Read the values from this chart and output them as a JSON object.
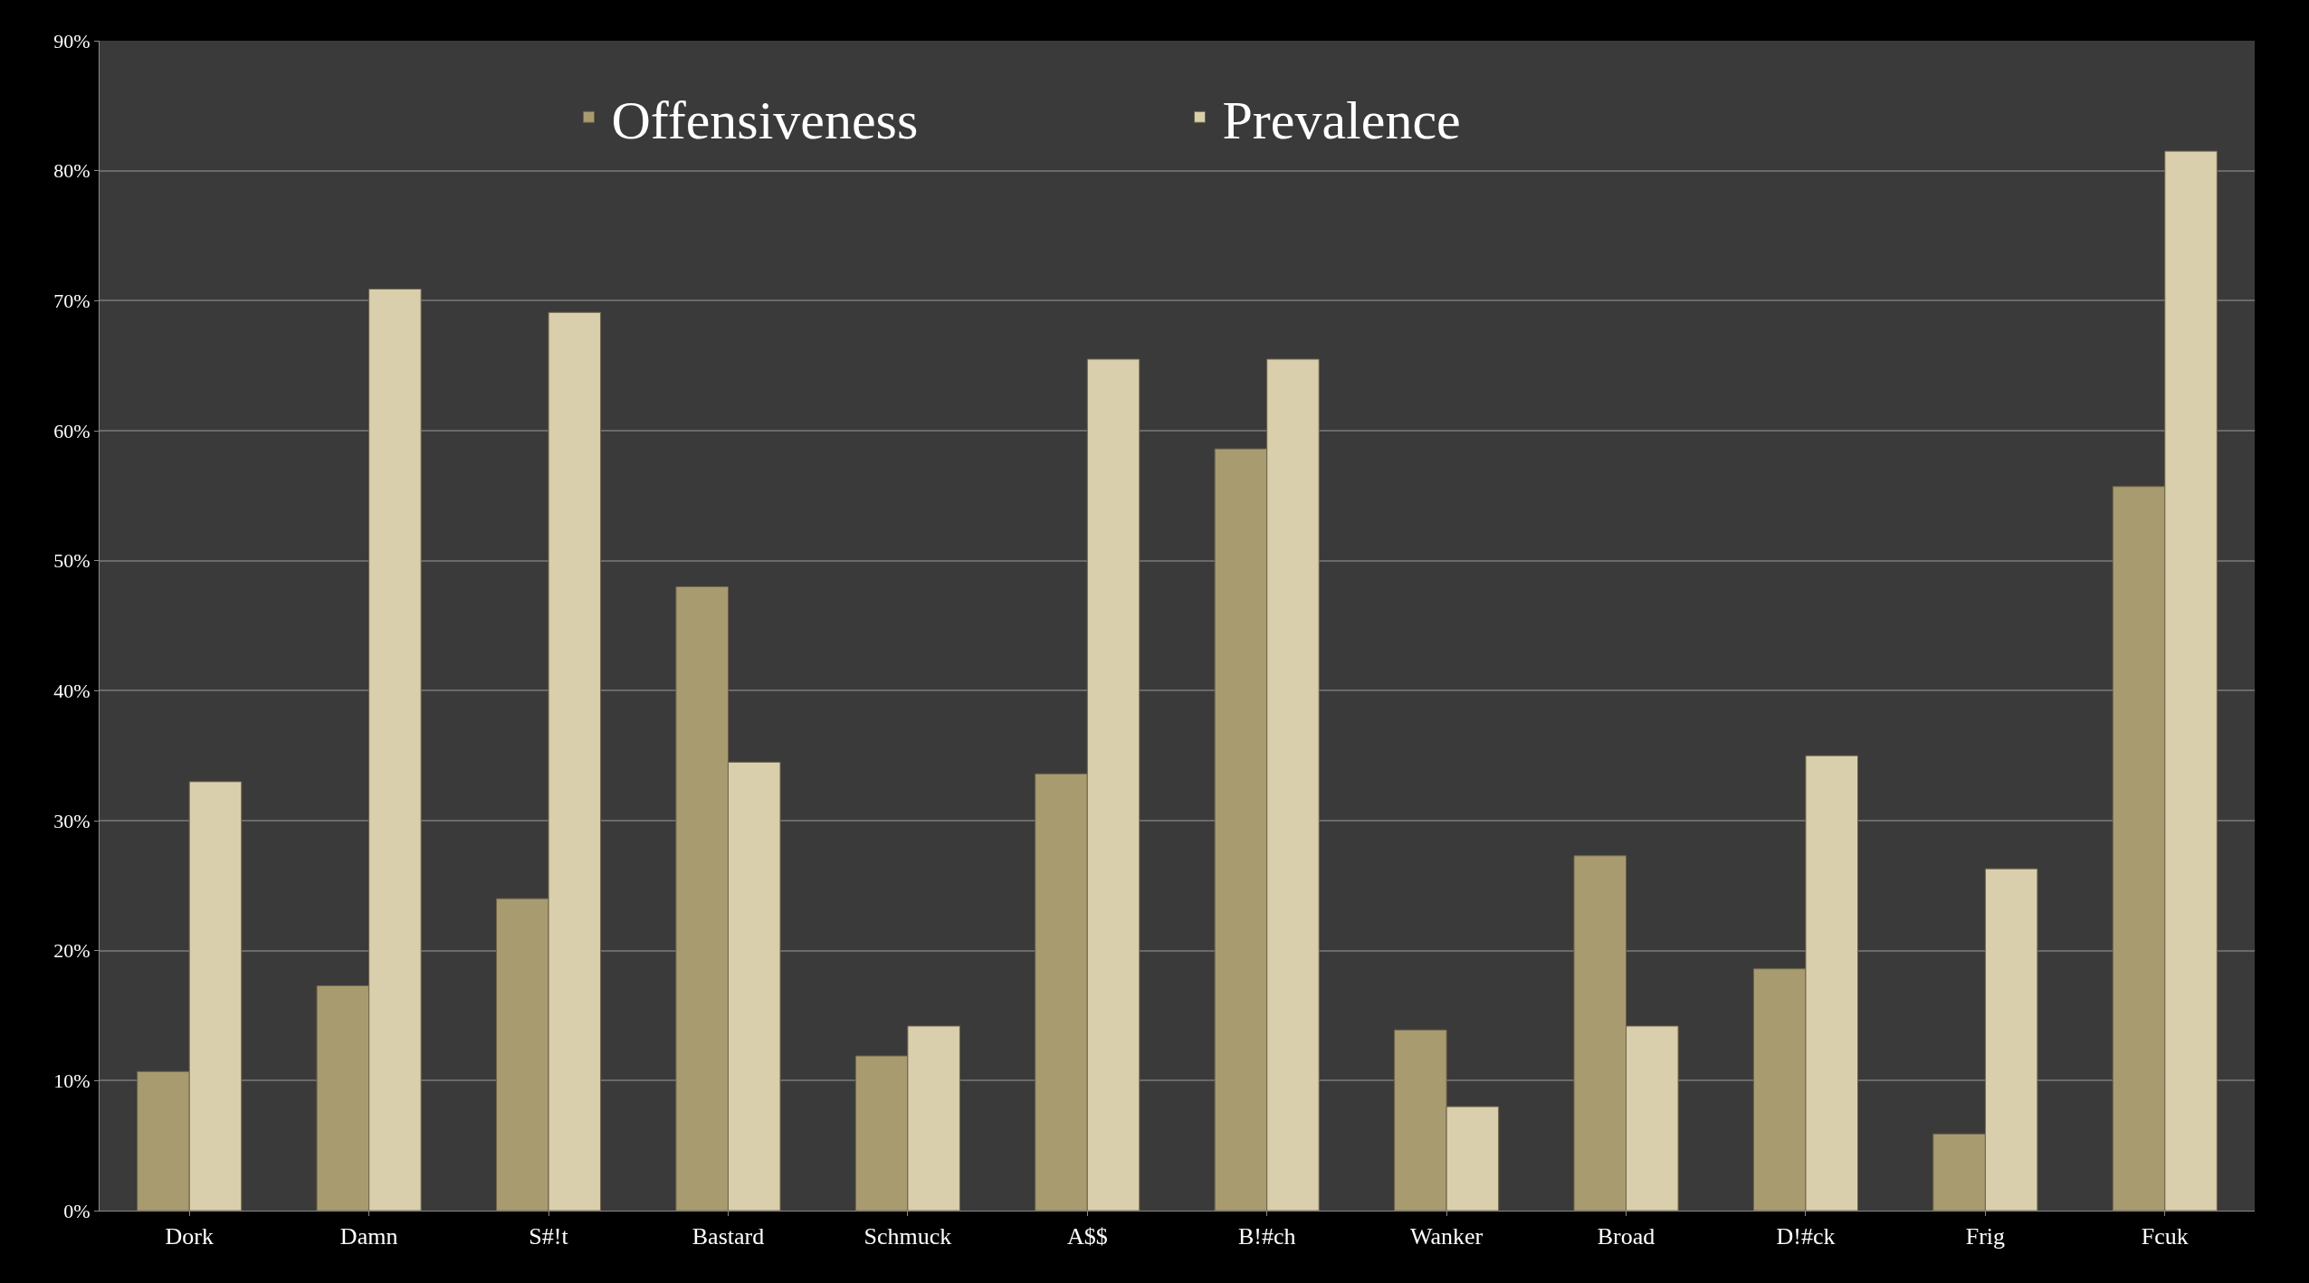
{
  "chart_data": {
    "type": "bar",
    "categories": [
      "Dork",
      "Damn",
      "S#!t",
      "Bastard",
      "Schmuck",
      "A$$",
      "B!#ch",
      "Wanker",
      "Broad",
      "D!#ck",
      "Frig",
      "Fcuk"
    ],
    "series": [
      {
        "name": "Offensiveness",
        "color": "#a99b70",
        "values": [
          10.7,
          17.3,
          24,
          48,
          11.9,
          33.6,
          58.6,
          13.9,
          27.3,
          18.6,
          5.9,
          55.7
        ]
      },
      {
        "name": "Prevalence",
        "color": "#d9cfac",
        "values": [
          33,
          70.9,
          69.1,
          34.5,
          14.2,
          65.5,
          65.5,
          8,
          14.2,
          35,
          26.3,
          81.5
        ]
      }
    ],
    "ylim": [
      0,
      90
    ],
    "yticks": [
      {
        "value": 0,
        "label": "0%"
      },
      {
        "value": 10,
        "label": "10%"
      },
      {
        "value": 20,
        "label": "20%"
      },
      {
        "value": 30,
        "label": "30%"
      },
      {
        "value": 40,
        "label": "40%"
      },
      {
        "value": 50,
        "label": "50%"
      },
      {
        "value": 60,
        "label": "60%"
      },
      {
        "value": 70,
        "label": "70%"
      },
      {
        "value": 80,
        "label": "80%"
      },
      {
        "value": 90,
        "label": "90%"
      }
    ],
    "grid": "y",
    "legend": "top"
  }
}
